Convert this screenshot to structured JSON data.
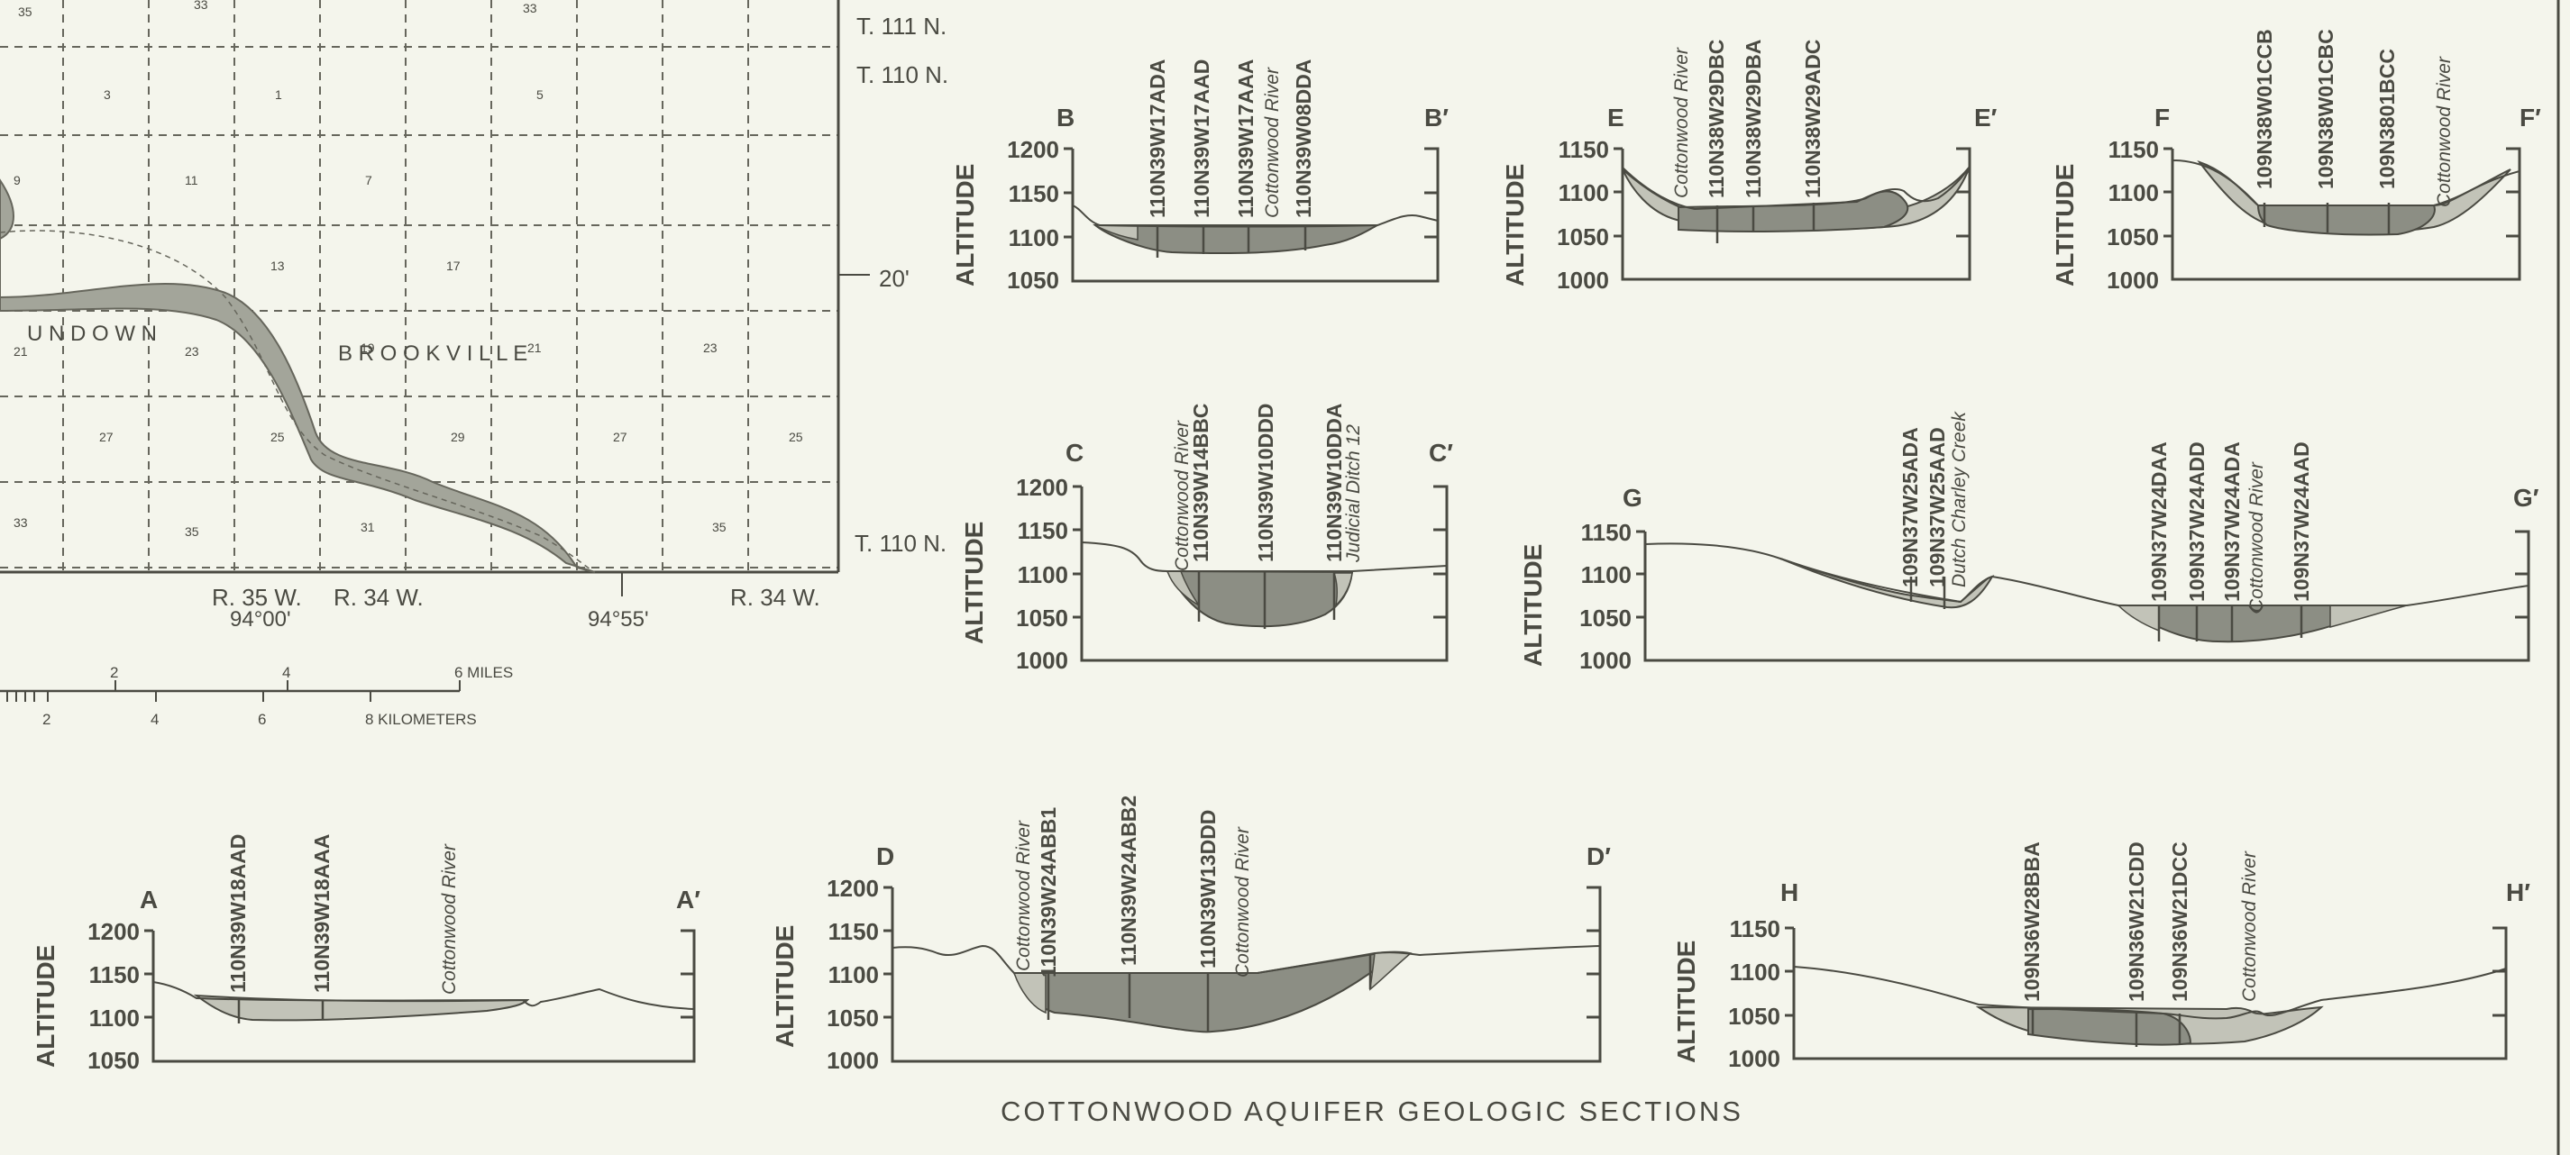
{
  "map": {
    "township_labels": [
      "T. 111 N.",
      "T. 110 N.",
      "T. 110 N."
    ],
    "minute_label": "20'",
    "range_labels": [
      "R. 35 W.",
      "R. 34 W.",
      "R. 34 W."
    ],
    "longitude_labels": [
      "94°00'",
      "94°55'"
    ],
    "town_names": [
      "U N D O W N",
      "B R O O K V I L L E"
    ],
    "section_numbers": [
      "33",
      "35",
      "33",
      "3",
      "1",
      "5",
      "9",
      "11",
      "7",
      "13",
      "17",
      "21",
      "23",
      "19",
      "21",
      "23",
      "27",
      "25",
      "29",
      "27",
      "25",
      "33",
      "35",
      "31",
      "35"
    ],
    "scale": {
      "miles_label": "6 MILES",
      "km_label": "8 KILOMETERS",
      "mile_ticks": [
        "2",
        "4"
      ],
      "km_ticks": [
        "2",
        "4",
        "6"
      ]
    },
    "colors": {
      "river": "#a3a59a",
      "background": "#f4f5ec",
      "ink": "#4a4a42"
    }
  },
  "figure_title": "COTTONWOOD AQUIFER GEOLOGIC SECTIONS",
  "sections": [
    {
      "id": "B",
      "start": "B",
      "end": "B′",
      "axis_label": "ALTITUDE",
      "ticks": [
        "1200",
        "1150",
        "1100",
        "1050"
      ],
      "wells": [
        "110N39W17ADA",
        "110N39W17AAD",
        "110N39W17AAA",
        "110N39W08DDA"
      ],
      "features": [
        "Cottonwood River"
      ]
    },
    {
      "id": "E",
      "start": "E",
      "end": "E′",
      "axis_label": "ALTITUDE",
      "ticks": [
        "1150",
        "1100",
        "1050",
        "1000"
      ],
      "wells": [
        "110N38W29DBC",
        "110N38W29DBA",
        "110N38W29ADC"
      ],
      "features": [
        "Cottonwood River"
      ]
    },
    {
      "id": "F",
      "start": "F",
      "end": "F′",
      "axis_label": "ALTITUDE",
      "ticks": [
        "1150",
        "1100",
        "1050",
        "1000"
      ],
      "wells": [
        "109N38W01CCB",
        "109N38W01CBC",
        "109N3801BCC"
      ],
      "features": [
        "Cottonwood River"
      ]
    },
    {
      "id": "C",
      "start": "C",
      "end": "C′",
      "axis_label": "ALTITUDE",
      "ticks": [
        "1200",
        "1150",
        "1100",
        "1050",
        "1000"
      ],
      "wells": [
        "110N39W14BBC",
        "110N39W10DDD",
        "110N39W10DDA"
      ],
      "features": [
        "Cottonwood River",
        "Judicial Ditch 12"
      ]
    },
    {
      "id": "G",
      "start": "G",
      "end": "G′",
      "axis_label": "ALTITUDE",
      "ticks": [
        "1150",
        "1100",
        "1050",
        "1000"
      ],
      "wells": [
        "109N37W25ADA",
        "109N37W25AAD",
        "109N37W24DAA",
        "109N37W24ADD",
        "109N37W24ADA",
        "109N37W24AAD"
      ],
      "features": [
        "Dutch Charley Creek",
        "Cottonwood River"
      ]
    },
    {
      "id": "A",
      "start": "A",
      "end": "A′",
      "axis_label": "ALTITUDE",
      "ticks": [
        "1200",
        "1150",
        "1100",
        "1050"
      ],
      "wells": [
        "110N39W18AAD",
        "110N39W18AAA"
      ],
      "features": [
        "Cottonwood River"
      ]
    },
    {
      "id": "D",
      "start": "D",
      "end": "D′",
      "axis_label": "ALTITUDE",
      "ticks": [
        "1200",
        "1150",
        "1100",
        "1050",
        "1000"
      ],
      "wells": [
        "110N39W24ABB1",
        "110N39W24ABB2",
        "110N39W13DDD"
      ],
      "features": [
        "Cottonwood River",
        "Cottonwood River"
      ]
    },
    {
      "id": "H",
      "start": "H",
      "end": "H′",
      "axis_label": "ALTITUDE",
      "ticks": [
        "1150",
        "1100",
        "1050",
        "1000"
      ],
      "wells": [
        "109N36W28BBA",
        "109N36W21CDD",
        "109N36W21DCC"
      ],
      "features": [
        "Cottonwood River"
      ]
    }
  ]
}
